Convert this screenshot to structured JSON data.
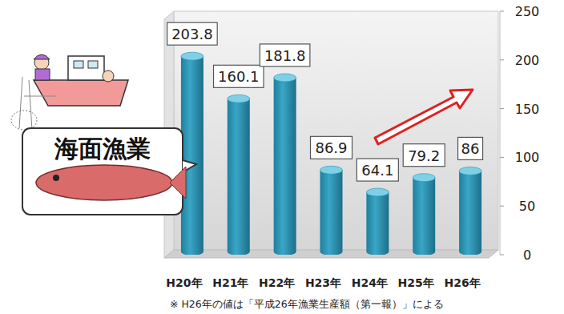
{
  "chart_data": {
    "type": "bar",
    "categories": [
      "H20年",
      "H21年",
      "H22年",
      "H23年",
      "H24年",
      "H25年",
      "H26年"
    ],
    "values": [
      203.8,
      160.1,
      181.8,
      86.9,
      64.1,
      79.2,
      86
    ],
    "color": "#3aa6c6",
    "ylim": [
      0,
      250
    ],
    "yticks": [
      0,
      50,
      100,
      150,
      200,
      250
    ],
    "grid": false,
    "data_labels": true,
    "annotations": [
      "海面漁業",
      "※ H26年の値は「平成26年漁業生産額（第一報）」による"
    ]
  }
}
